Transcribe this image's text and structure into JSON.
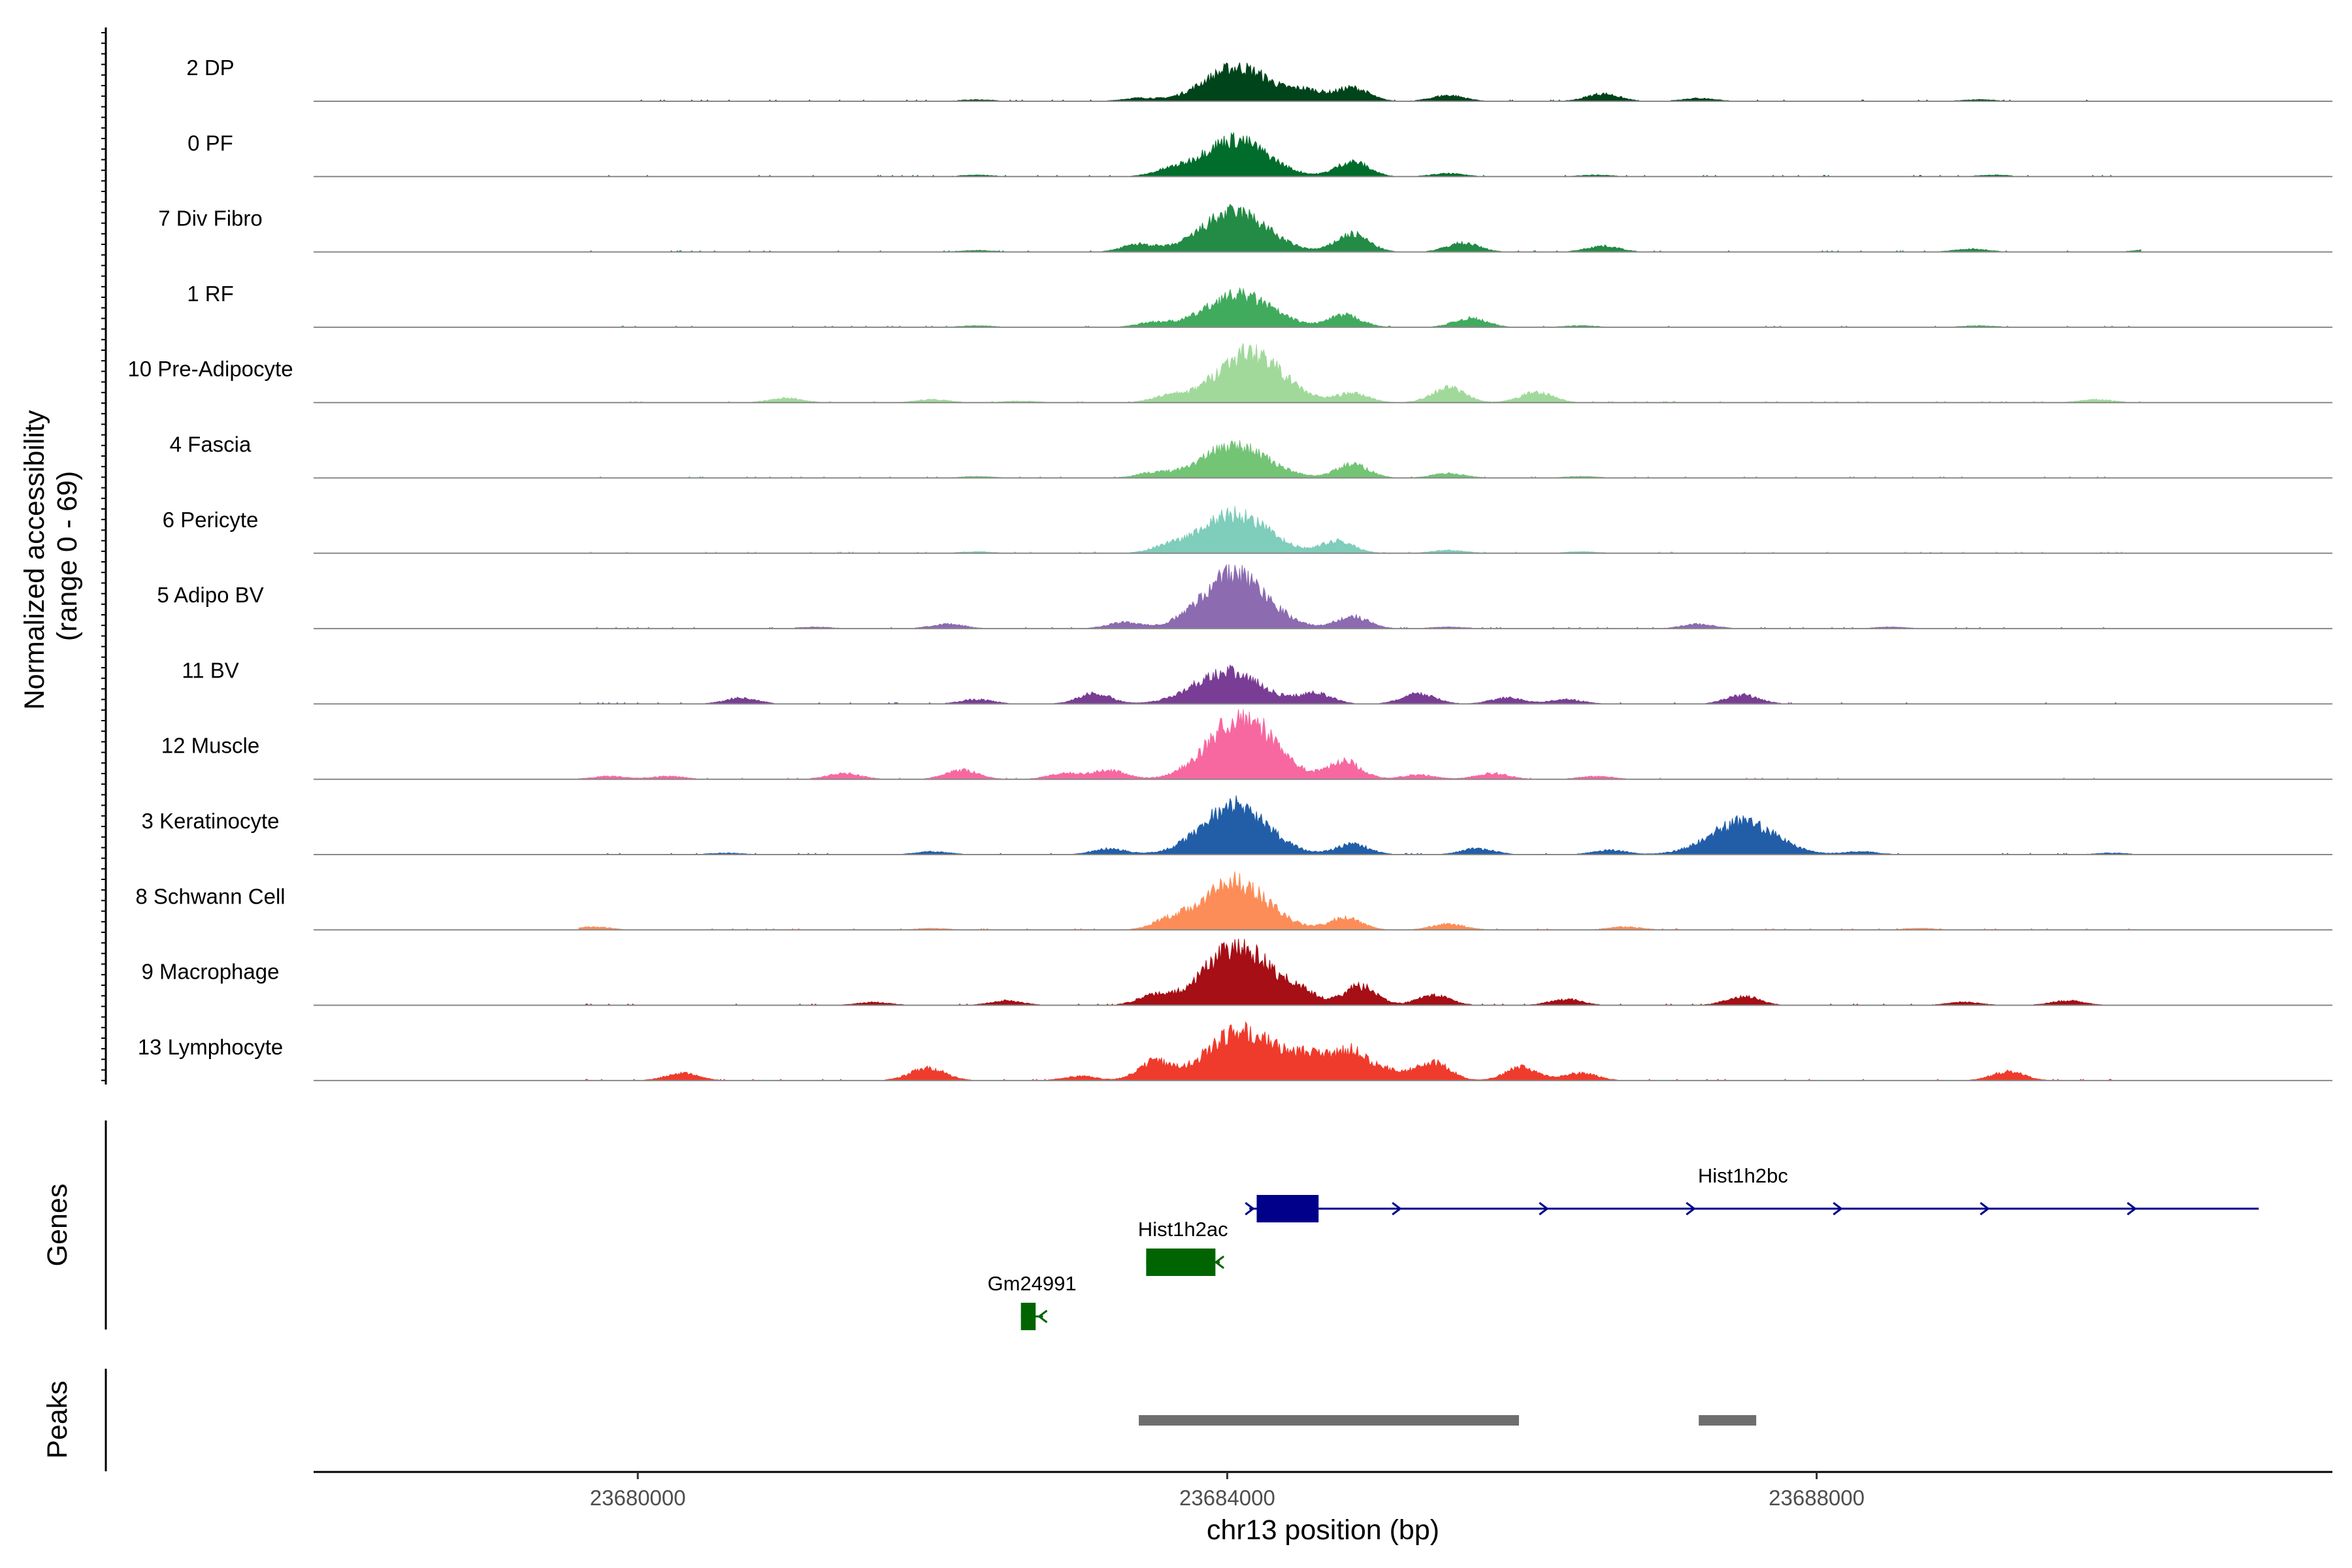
{
  "chart_data": {
    "type": "area",
    "title": "",
    "xlabel": "chr13 position (bp)",
    "ylabel": "Normalized accessibility\n(range 0 - 69)",
    "y_range": [
      0,
      69
    ],
    "xlim": [
      23677800,
      23691500
    ],
    "x_ticks": [
      23680000,
      23684000,
      23688000
    ],
    "x_tick_labels": [
      "23680000",
      "23684000",
      "23688000"
    ],
    "tracks": [
      {
        "name": "2 DP",
        "color": "#00441b",
        "peaks": [
          [
            23684070,
            23
          ],
          [
            23684550,
            6
          ],
          [
            23684850,
            9
          ],
          [
            23685500,
            4
          ],
          [
            23686550,
            5
          ],
          [
            23683400,
            2
          ],
          [
            23682300,
            1
          ],
          [
            23687200,
            2
          ],
          [
            23689100,
            1
          ],
          [
            23690500,
            1
          ]
        ]
      },
      {
        "name": "0 PF",
        "color": "#006d2c",
        "peaks": [
          [
            23684050,
            25
          ],
          [
            23684850,
            10
          ],
          [
            23685500,
            2
          ],
          [
            23683600,
            3
          ],
          [
            23682300,
            1
          ],
          [
            23686500,
            1
          ],
          [
            23689200,
            1
          ]
        ]
      },
      {
        "name": "7 Div Fibro",
        "color": "#238b45",
        "peaks": [
          [
            23684050,
            27
          ],
          [
            23683400,
            5
          ],
          [
            23684850,
            12
          ],
          [
            23685600,
            6
          ],
          [
            23686550,
            4
          ],
          [
            23678800,
            2
          ],
          [
            23682300,
            1
          ],
          [
            23689050,
            2
          ],
          [
            23690300,
            2
          ]
        ]
      },
      {
        "name": "1 RF",
        "color": "#41ab5d",
        "peaks": [
          [
            23684080,
            22
          ],
          [
            23684800,
            8
          ],
          [
            23685650,
            6
          ],
          [
            23683500,
            3
          ],
          [
            23682300,
            1
          ],
          [
            23686400,
            1
          ],
          [
            23689100,
            1
          ]
        ]
      },
      {
        "name": "10 Pre-Adipocyte",
        "color": "#a1d99b",
        "peaks": [
          [
            23684150,
            34
          ],
          [
            23684850,
            6
          ],
          [
            23685500,
            10
          ],
          [
            23686100,
            7
          ],
          [
            23683600,
            4
          ],
          [
            23681000,
            3
          ],
          [
            23682000,
            2
          ],
          [
            23682600,
            1
          ],
          [
            23689900,
            2
          ],
          [
            23690800,
            1
          ]
        ]
      },
      {
        "name": "4 Fascia",
        "color": "#74c476",
        "peaks": [
          [
            23684050,
            22
          ],
          [
            23684850,
            9
          ],
          [
            23685500,
            3
          ],
          [
            23683500,
            3
          ],
          [
            23682300,
            1
          ],
          [
            23686400,
            1
          ]
        ]
      },
      {
        "name": "6 Pericyte",
        "color": "#7fcdbb",
        "peaks": [
          [
            23684050,
            27
          ],
          [
            23684750,
            8
          ],
          [
            23683600,
            4
          ],
          [
            23685500,
            2
          ],
          [
            23682300,
            1
          ],
          [
            23686400,
            1
          ]
        ]
      },
      {
        "name": "5 Adipo BV",
        "color": "#8c6bb1",
        "peaks": [
          [
            23684050,
            37
          ],
          [
            23684850,
            8
          ],
          [
            23683300,
            4
          ],
          [
            23682100,
            3
          ],
          [
            23687200,
            3
          ],
          [
            23681200,
            1
          ],
          [
            23685500,
            1
          ],
          [
            23688500,
            1
          ]
        ]
      },
      {
        "name": "11 BV",
        "color": "#7a3d96",
        "peaks": [
          [
            23684000,
            22
          ],
          [
            23684600,
            7
          ],
          [
            23683100,
            7
          ],
          [
            23685300,
            7
          ],
          [
            23687500,
            6
          ],
          [
            23685900,
            4
          ],
          [
            23680700,
            4
          ],
          [
            23682300,
            3
          ],
          [
            23686300,
            3
          ],
          [
            23690500,
            2
          ]
        ]
      },
      {
        "name": "12 Muscle",
        "color": "#f768a1",
        "peaks": [
          [
            23684100,
            43
          ],
          [
            23684800,
            12
          ],
          [
            23683200,
            6
          ],
          [
            23682200,
            6
          ],
          [
            23685800,
            4
          ],
          [
            23685300,
            3
          ],
          [
            23681400,
            4
          ],
          [
            23679800,
            2
          ],
          [
            23680200,
            2
          ],
          [
            23682900,
            4
          ],
          [
            23686500,
            2
          ]
        ]
      },
      {
        "name": "3 Keratinocyte",
        "color": "#225ea8",
        "peaks": [
          [
            23684050,
            33
          ],
          [
            23687500,
            22
          ],
          [
            23684850,
            7
          ],
          [
            23685700,
            4
          ],
          [
            23683200,
            4
          ],
          [
            23686600,
            3
          ],
          [
            23682000,
            2
          ],
          [
            23688300,
            2
          ],
          [
            23680600,
            1
          ],
          [
            23690000,
            1
          ]
        ]
      },
      {
        "name": "8 Schwann Cell",
        "color": "#fc8d59",
        "peaks": [
          [
            23684050,
            33
          ],
          [
            23684800,
            8
          ],
          [
            23683600,
            5
          ],
          [
            23685500,
            4
          ],
          [
            23686700,
            2
          ],
          [
            23679700,
            2
          ],
          [
            23682000,
            1
          ],
          [
            23688700,
            1
          ]
        ]
      },
      {
        "name": "9 Macrophage",
        "color": "#a50f15",
        "peaks": [
          [
            23684070,
            41
          ],
          [
            23684900,
            13
          ],
          [
            23684500,
            7
          ],
          [
            23683500,
            6
          ],
          [
            23685400,
            7
          ],
          [
            23687500,
            6
          ],
          [
            23686300,
            4
          ],
          [
            23682500,
            3
          ],
          [
            23681600,
            2
          ],
          [
            23679200,
            2
          ],
          [
            23678500,
            1
          ],
          [
            23689700,
            3
          ],
          [
            23690800,
            3
          ],
          [
            23689000,
            2
          ]
        ]
      },
      {
        "name": "13 Lymphocyte",
        "color": "#ef3b2c",
        "peaks": [
          [
            23684070,
            31
          ],
          [
            23684550,
            16
          ],
          [
            23684850,
            14
          ],
          [
            23683500,
            12
          ],
          [
            23685400,
            13
          ],
          [
            23686000,
            9
          ],
          [
            23686400,
            5
          ],
          [
            23682000,
            6
          ],
          [
            23680300,
            5
          ],
          [
            23678700,
            5
          ],
          [
            23681900,
            3
          ],
          [
            23689300,
            6
          ],
          [
            23683000,
            3
          ],
          [
            23685100,
            6
          ]
        ]
      }
    ],
    "genes_label": "Genes",
    "genes": [
      {
        "name": "Hist1h2bc",
        "color": "#00008b",
        "strand": "+",
        "start": 23684150,
        "end": 23691000,
        "exon_start": 23684200,
        "exon_end": 23684620,
        "row": 0
      },
      {
        "name": "Hist1h2ac",
        "color": "#006400",
        "strand": "-",
        "start": 23683450,
        "end": 23683950,
        "exon_start": 23683450,
        "exon_end": 23683920,
        "row": 1
      },
      {
        "name": "Gm24991",
        "color": "#006400",
        "strand": "-",
        "start": 23682600,
        "end": 23682750,
        "exon_start": 23682600,
        "exon_end": 23682700,
        "row": 2
      }
    ],
    "peaks_label": "Peaks",
    "peak_regions": [
      [
        23683400,
        23685980
      ],
      [
        23687200,
        23687590
      ]
    ],
    "peak_color": "#6e6e6e"
  }
}
